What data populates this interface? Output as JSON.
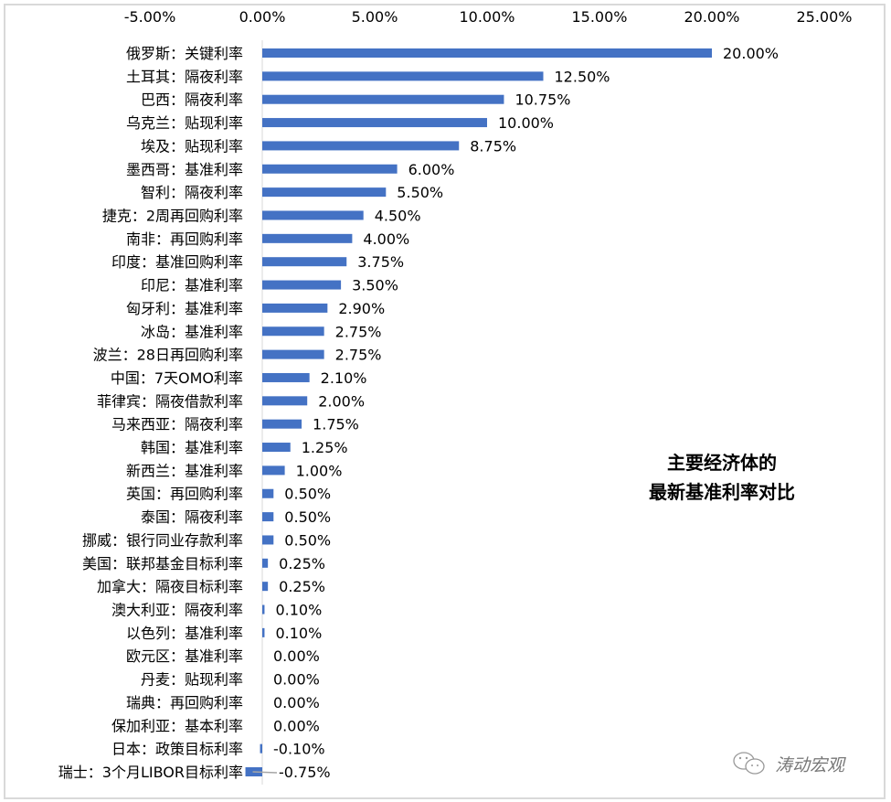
{
  "chart_data": {
    "type": "bar",
    "orientation": "horizontal",
    "title": "主要经济体的\n最新基准利率对比",
    "title_lines": [
      "主要经济体的",
      "最新基准利率对比"
    ],
    "xlim": [
      -5,
      25
    ],
    "x_ticks": [
      "-5.00%",
      "0.00%",
      "5.00%",
      "10.00%",
      "15.00%",
      "20.00%",
      "25.00%"
    ],
    "x_tick_values": [
      -5,
      0,
      5,
      10,
      15,
      20,
      25
    ],
    "x_axis_position": "top",
    "grid": false,
    "bar_color": "#4472c4",
    "categories": [
      "俄罗斯：关键利率",
      "土耳其：隔夜利率",
      "巴西：隔夜利率",
      "乌克兰：贴现利率",
      "埃及：贴现利率",
      "墨西哥：基准利率",
      "智利：隔夜利率",
      "捷克：2周再回购利率",
      "南非：再回购利率",
      "印度：基准回购利率",
      "印尼：基准利率",
      "匈牙利：基准利率",
      "冰岛：基准利率",
      "波兰：28日再回购利率",
      "中国：7天OMO利率",
      "菲律宾：隔夜借款利率",
      "马来西亚：隔夜利率",
      "韩国：基准利率",
      "新西兰：基准利率",
      "英国：再回购利率",
      "泰国：隔夜利率",
      "挪威：银行同业存款利率",
      "美国：联邦基金目标利率",
      "加拿大：隔夜目标利率",
      "澳大利亚：隔夜利率",
      "以色列：基准利率",
      "欧元区：基准利率",
      "丹麦：贴现利率",
      "瑞典：再回购利率",
      "保加利亚：基本利率",
      "日本：政策目标利率",
      "瑞士：3个月LIBOR目标利率"
    ],
    "values": [
      20,
      12.5,
      10.75,
      10,
      8.75,
      6,
      5.5,
      4.5,
      4,
      3.75,
      3.5,
      2.9,
      2.75,
      2.75,
      2.1,
      2,
      1.75,
      1.25,
      1,
      0.5,
      0.5,
      0.5,
      0.25,
      0.25,
      0.1,
      0.1,
      0,
      0,
      0,
      0,
      -0.1,
      -0.75
    ],
    "data_labels": [
      "20.00%",
      "12.50%",
      "10.75%",
      "10.00%",
      "8.75%",
      "6.00%",
      "5.50%",
      "4.50%",
      "4.00%",
      "3.75%",
      "3.50%",
      "2.90%",
      "2.75%",
      "2.75%",
      "2.10%",
      "2.00%",
      "1.75%",
      "1.25%",
      "1.00%",
      "0.50%",
      "0.50%",
      "0.50%",
      "0.25%",
      "0.25%",
      "0.10%",
      "0.10%",
      "0.00%",
      "0.00%",
      "0.00%",
      "0.00%",
      "-0.10%",
      "-0.75%"
    ]
  },
  "watermark": {
    "text": "涛动宏观",
    "icon": "wechat-icon"
  }
}
